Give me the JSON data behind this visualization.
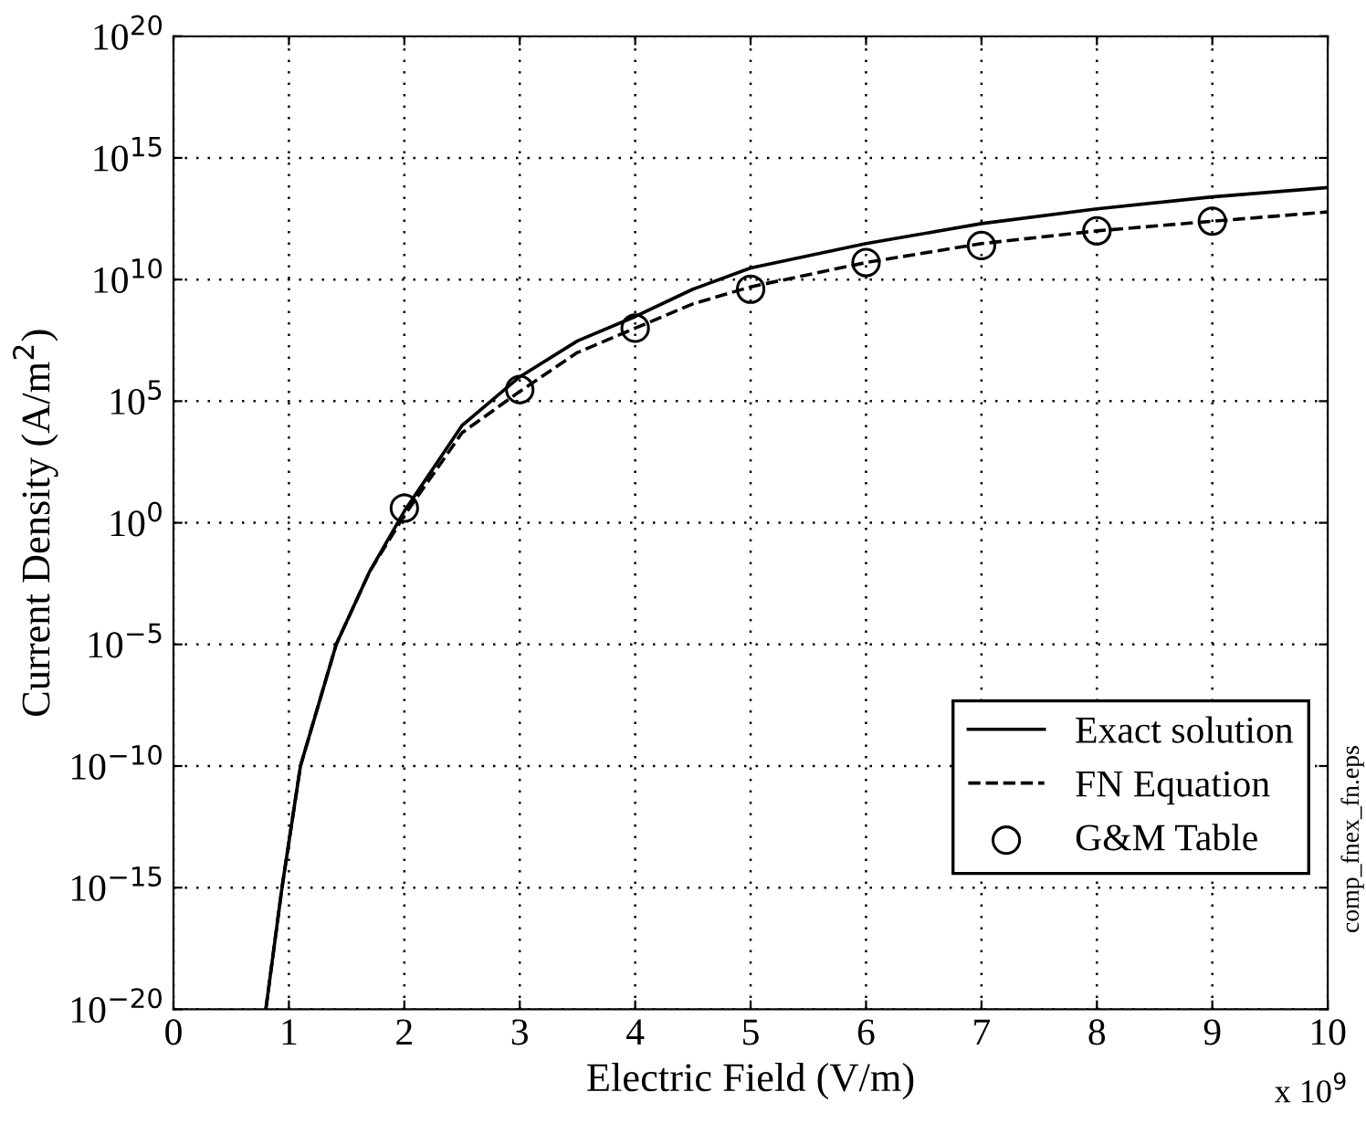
{
  "chart_data": {
    "type": "line",
    "xlabel": "Electric Field (V/m)",
    "ylabel": "Current Density (A/m$^{2}$)",
    "log": "y",
    "grid": true,
    "legend": "bottom right",
    "xlim": [
      0,
      10
    ],
    "xticks": [
      0,
      1,
      2,
      3,
      4,
      5,
      6,
      7,
      8,
      9,
      10
    ],
    "ylim": [
      1e-20,
      1e+20
    ],
    "yticks": [
      {
        "value": 1e-20,
        "label": "10$^{−20}$"
      },
      {
        "value": 1e-15,
        "label": "10$^{−15}$"
      },
      {
        "value": 1e-10,
        "label": "10$^{−10}$"
      },
      {
        "value": 1e-05,
        "label": "10$^{−5}$"
      },
      {
        "value": 1,
        "label": "10$^{0}$"
      },
      {
        "value": 100000.0,
        "label": "10$^{5}$"
      },
      {
        "value": 10000000000.0,
        "label": "10$^{10}$"
      },
      {
        "value": 1000000000000000.0,
        "label": "10$^{15}$"
      },
      {
        "value": 1e+20,
        "label": "10$^{20}$"
      }
    ],
    "series": [
      {
        "name": "Exact solution",
        "line_style": "solid",
        "marker": "none",
        "color": "#000000",
        "x": [
          0.8,
          0.94,
          1.1,
          1.41,
          1.7,
          2,
          2.5,
          3,
          3.5,
          4,
          4.5,
          5,
          6,
          7,
          8,
          9,
          10
        ],
        "values": [
          1e-20,
          1e-15,
          1e-10,
          1e-05,
          0.01,
          3,
          10000.0,
          1000000.0,
          30000000.0,
          300000000.0,
          4000000000.0,
          30000000000.0,
          300000000000.0,
          2000000000000.0,
          8000000000000.0,
          25000000000000.0,
          60000000000000.0
        ]
      },
      {
        "name": "FN Equation",
        "line_style": "dashed",
        "marker": "none",
        "color": "#000000",
        "x": [
          0.8,
          0.94,
          1.1,
          1.41,
          1.7,
          2,
          2.5,
          3,
          3.5,
          4,
          4.5,
          5,
          6,
          7,
          8,
          9,
          10
        ],
        "values": [
          1e-20,
          1e-15,
          1e-10,
          1e-05,
          0.01,
          2,
          5000.0,
          250000.0,
          10000000.0,
          100000000.0,
          1000000000.0,
          5000000000.0,
          50000000000.0,
          300000000000.0,
          1000000000000.0,
          2500000000000.0,
          6000000000000.0
        ]
      },
      {
        "name": "G&M Table",
        "type": "scatter",
        "marker": "circle",
        "color": "#000000",
        "x": [
          2,
          3,
          4,
          5,
          6,
          7,
          8,
          9
        ],
        "values": [
          4,
          300000.0,
          100000000.0,
          4000000000.0,
          50000000000.0,
          250000000000.0,
          1000000000000.0,
          2500000000000.0
        ]
      }
    ],
    "annotations": [
      "x 10$^{9}$",
      "comp_fnex_fn.eps"
    ]
  }
}
